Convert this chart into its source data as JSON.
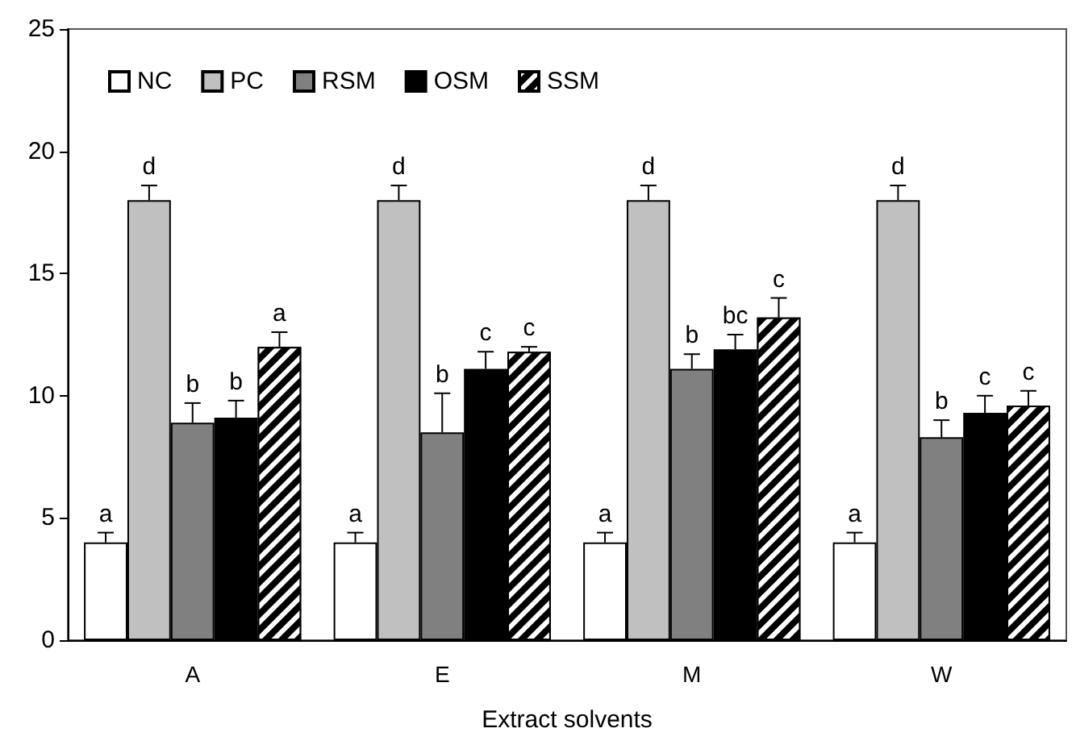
{
  "chart_data": {
    "type": "bar",
    "xlabel": "Extract solvents",
    "categories": [
      "A",
      "E",
      "M",
      "W"
    ],
    "series": [
      {
        "name": "NC",
        "color": "#ffffff",
        "values": [
          4.0,
          4.0,
          4.0,
          4.0
        ],
        "errors": [
          0.4,
          0.4,
          0.4,
          0.4
        ],
        "value_labels": [
          "a",
          "a",
          "a",
          "a"
        ]
      },
      {
        "name": "PC",
        "color": "#c0c0c0",
        "values": [
          18.0,
          18.0,
          18.0,
          18.0
        ],
        "errors": [
          0.6,
          0.6,
          0.6,
          0.6
        ],
        "value_labels": [
          "d",
          "d",
          "d",
          "d"
        ]
      },
      {
        "name": "RSM",
        "color": "#808080",
        "values": [
          8.9,
          8.5,
          11.1,
          8.3
        ],
        "errors": [
          0.8,
          1.6,
          0.6,
          0.7
        ],
        "value_labels": [
          "b",
          "b",
          "b",
          "b"
        ]
      },
      {
        "name": "OSM",
        "color": "#000000",
        "values": [
          9.1,
          11.1,
          11.9,
          9.3
        ],
        "errors": [
          0.7,
          0.7,
          0.6,
          0.7
        ],
        "value_labels": [
          "b",
          "c",
          "bc",
          "c"
        ]
      },
      {
        "name": "SSM",
        "color": "#000000",
        "values": [
          12.0,
          11.8,
          13.2,
          9.6
        ],
        "errors": [
          0.6,
          0.2,
          0.8,
          0.6
        ],
        "value_labels": [
          "a",
          "c",
          "c",
          "c"
        ]
      }
    ],
    "ylim": [
      0,
      25
    ],
    "yticks": [
      0,
      5,
      10,
      15,
      20,
      25
    ],
    "grid": false,
    "legend": "top left"
  }
}
